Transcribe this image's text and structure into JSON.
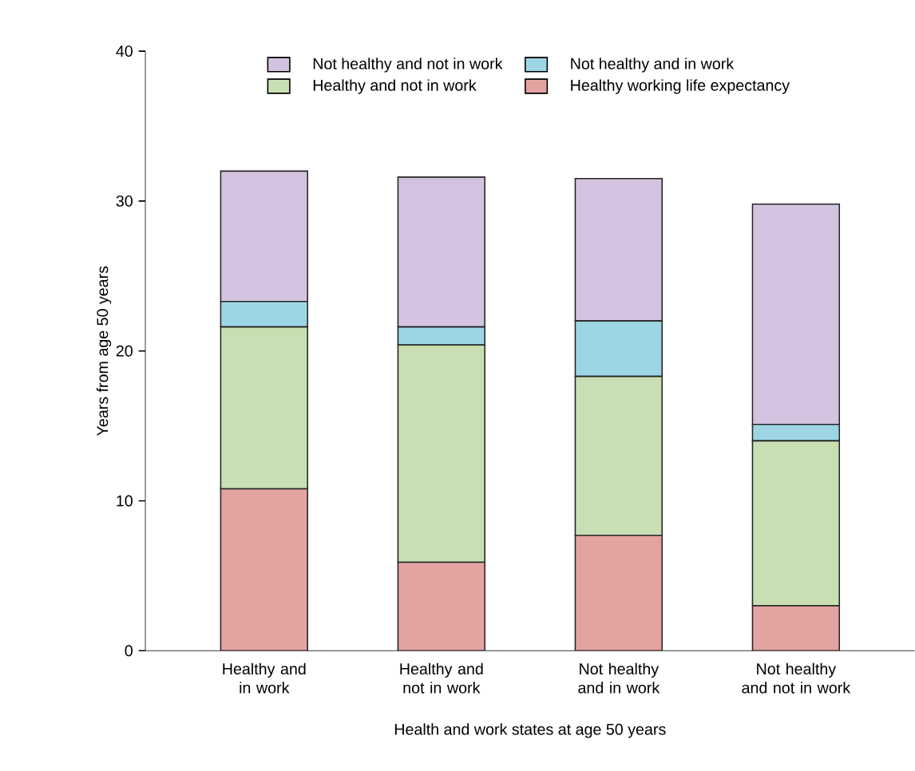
{
  "chart_data": {
    "type": "bar",
    "stacked": true,
    "xlabel": "Health and work states at age 50 years",
    "ylabel": "Years from age 50 years",
    "categories": [
      "Healthy and in work",
      "Healthy and not in work",
      "Not healthy and in work",
      "Not healthy and not in work"
    ],
    "series": [
      {
        "name": "Healthy working life expectancy",
        "color": "#e3a3a1",
        "values": [
          10.8,
          5.9,
          7.7,
          3.0
        ]
      },
      {
        "name": "Healthy and not in work",
        "color": "#c8dfb3",
        "values": [
          10.8,
          14.5,
          10.6,
          11.0
        ]
      },
      {
        "name": "Not healthy and in work",
        "color": "#9dd5e5",
        "values": [
          1.7,
          1.2,
          3.7,
          1.1
        ]
      },
      {
        "name": "Not healthy and not in work",
        "color": "#d4c3e0",
        "values": [
          8.7,
          10.0,
          9.5,
          14.7
        ]
      }
    ],
    "ylim": [
      0,
      40
    ],
    "yticks": [
      0,
      10,
      20,
      30,
      40
    ],
    "legend": "top",
    "grid": false
  }
}
